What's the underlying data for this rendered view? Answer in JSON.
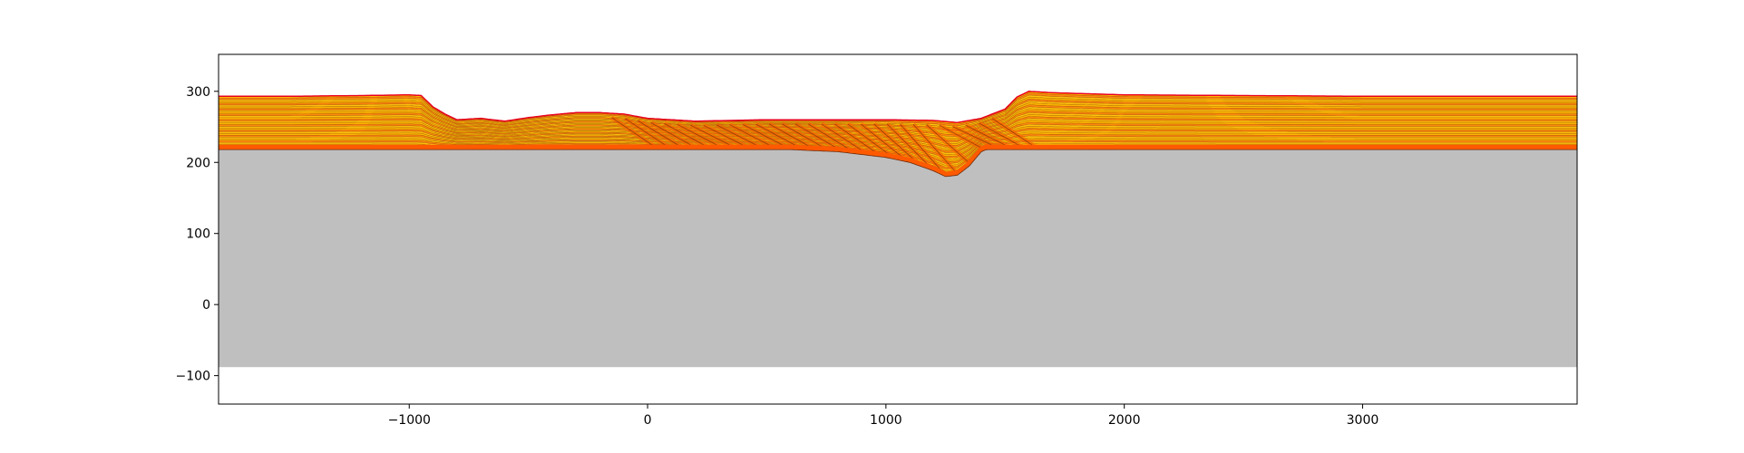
{
  "chart_data": {
    "type": "area",
    "title": "",
    "xlabel": "",
    "ylabel": "",
    "xlim": [
      -1800,
      3900
    ],
    "ylim": [
      -140,
      352
    ],
    "grid": false,
    "x_ticks": [
      -1000,
      0,
      1000,
      2000,
      3000
    ],
    "x_tick_labels": [
      "−1000",
      "0",
      "1000",
      "2000",
      "3000"
    ],
    "y_ticks": [
      -100,
      0,
      100,
      200,
      300
    ],
    "y_tick_labels": [
      "−100",
      "0",
      "100",
      "200",
      "300"
    ],
    "basement": {
      "top": 218,
      "bottom": -88,
      "x": [
        -1800,
        3900
      ]
    },
    "surfaces": [
      {
        "name": "top",
        "x": [
          -1800,
          -1500,
          -1200,
          -1000,
          -950,
          -900,
          -850,
          -800,
          -700,
          -600,
          -500,
          -400,
          -300,
          -200,
          -100,
          0,
          200,
          500,
          800,
          1000,
          1200,
          1300,
          1400,
          1500,
          1550,
          1600,
          1700,
          2000,
          2500,
          3000,
          3900
        ],
        "y": [
          293,
          293,
          294,
          295,
          294,
          278,
          268,
          260,
          262,
          258,
          263,
          267,
          270,
          270,
          268,
          262,
          258,
          260,
          260,
          260,
          259,
          256,
          262,
          275,
          292,
          300,
          298,
          295,
          294,
          293,
          293
        ]
      },
      {
        "name": "trough-base",
        "x": [
          -900,
          -800,
          -600,
          -400,
          -200,
          -150,
          -100,
          0,
          200,
          400,
          600,
          800,
          1000,
          1100,
          1200,
          1250,
          1300,
          1350,
          1400,
          1450,
          1500,
          1600,
          2000,
          2500,
          3000,
          3900
        ],
        "y": [
          275,
          250,
          245,
          252,
          250,
          245,
          237,
          228,
          222,
          220,
          218,
          215,
          207,
          200,
          188,
          180,
          182,
          195,
          215,
          222,
          220,
          219,
          218,
          218,
          218,
          218
        ]
      }
    ],
    "colors": {
      "basement": "#bfbfbf",
      "layer_light": "#ffc20e",
      "layer_dark": "#ff7f0e",
      "layer_accent": "#ff5a00",
      "line": "#6b2a0a",
      "top_line": "#e8001c"
    }
  }
}
